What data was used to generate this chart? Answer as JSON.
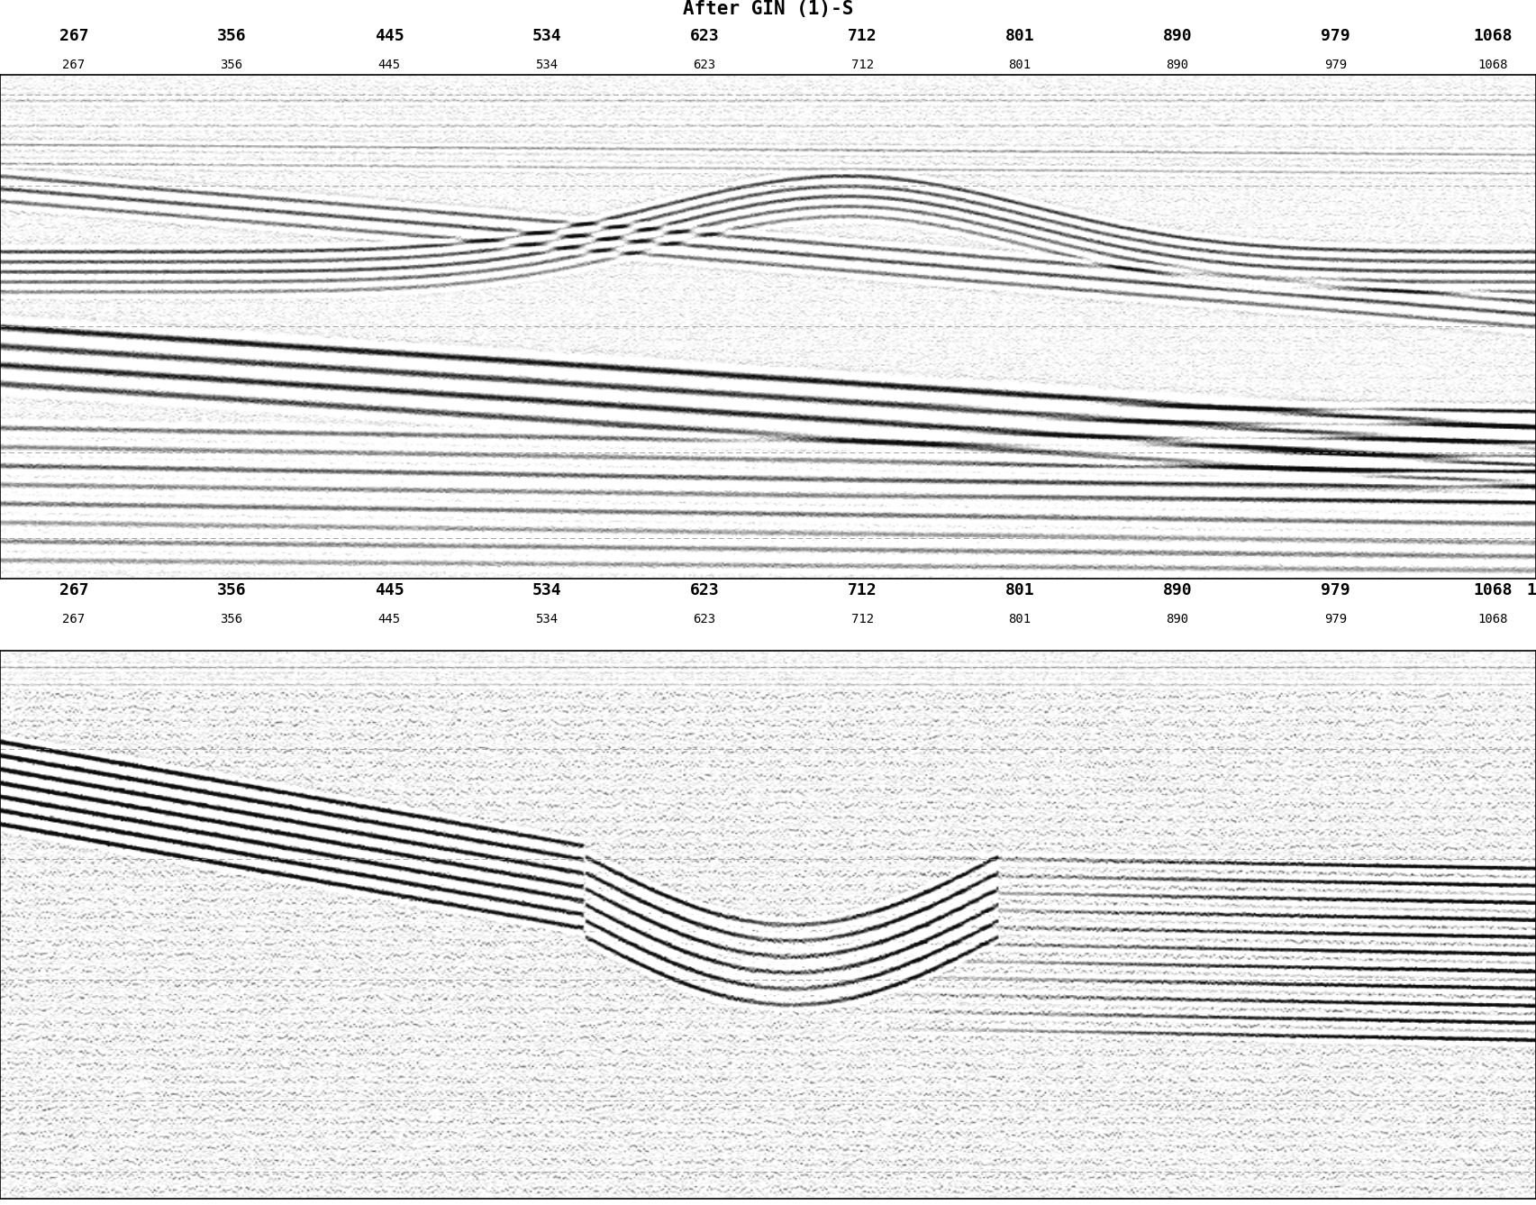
{
  "title": "After GIN (1)-S",
  "tick_labels": [
    267,
    356,
    445,
    534,
    623,
    712,
    801,
    890,
    979,
    1068
  ],
  "bg_color": "#ffffff",
  "title_fontsize": 15,
  "tick_fontsize_large": 13,
  "tick_fontsize_small": 10,
  "n_traces": 800,
  "n_samples_p1": 400,
  "n_samples_p2": 480,
  "seed_panel1": 1234,
  "seed_panel2": 5678,
  "trace_color": "#000000",
  "fill_color": "#000000",
  "dashed_color": "#999999"
}
